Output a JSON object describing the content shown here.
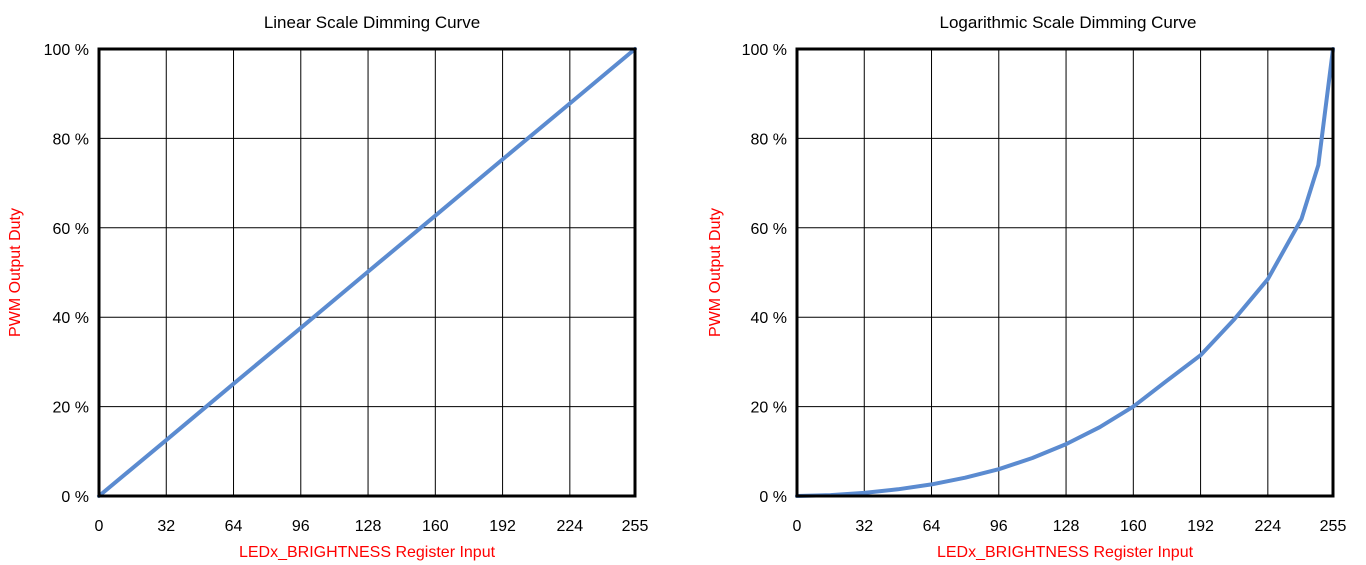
{
  "colors": {
    "axis_label": "#ff0000",
    "curve": "#5b8bd0",
    "grid": "#000000",
    "frame": "#000000"
  },
  "chart_data": [
    {
      "type": "line",
      "title": "Linear Scale Dimming Curve",
      "xlabel": "LEDx_BRIGHTNESS Register Input",
      "ylabel": "PWM Output Duty",
      "xlim": [
        0,
        255
      ],
      "ylim": [
        0,
        100
      ],
      "x_ticks": [
        "0",
        "32",
        "64",
        "96",
        "128",
        "160",
        "192",
        "224",
        "255"
      ],
      "y_ticks": [
        "0 %",
        "20 %",
        "40 %",
        "60 %",
        "80 %",
        "100 %"
      ],
      "grid": true,
      "series": [
        {
          "x": [
            0,
            32,
            64,
            96,
            128,
            160,
            192,
            224,
            255
          ],
          "y": [
            0,
            12.5,
            25.1,
            37.6,
            50.2,
            62.7,
            75.3,
            87.8,
            100
          ]
        }
      ]
    },
    {
      "type": "line",
      "title": "Logarithmic Scale Dimming Curve",
      "xlabel": "LEDx_BRIGHTNESS Register Input",
      "ylabel": "PWM Output Duty",
      "xlim": [
        0,
        255
      ],
      "ylim": [
        0,
        100
      ],
      "x_ticks": [
        "0",
        "32",
        "64",
        "96",
        "128",
        "160",
        "192",
        "224",
        "255"
      ],
      "y_ticks": [
        "0 %",
        "20 %",
        "40 %",
        "60 %",
        "80 %",
        "100 %"
      ],
      "grid": true,
      "series": [
        {
          "x": [
            0,
            16,
            32,
            48,
            64,
            80,
            96,
            112,
            128,
            144,
            160,
            176,
            192,
            208,
            224,
            240,
            248,
            255
          ],
          "y": [
            0,
            0.2,
            0.7,
            1.5,
            2.6,
            4.1,
            6.0,
            8.5,
            11.6,
            15.4,
            20.0,
            25.8,
            31.5,
            39.5,
            48.5,
            62.0,
            74.0,
            100
          ]
        }
      ]
    }
  ]
}
